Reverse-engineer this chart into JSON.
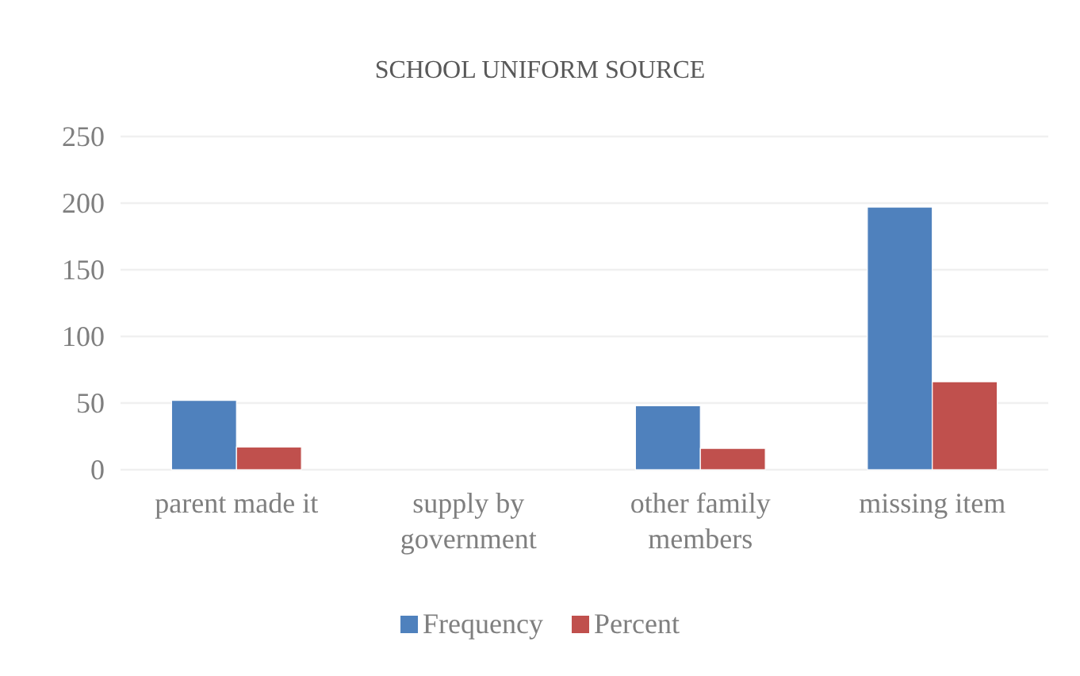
{
  "chart_data": {
    "type": "bar",
    "title": "SCHOOL UNIFORM SOURCE",
    "categories": [
      "parent made it",
      "supply by government",
      "other family members",
      "missing item"
    ],
    "series": [
      {
        "name": "Frequency",
        "color": "#4f81bd",
        "values": [
          52,
          0,
          48,
          197
        ]
      },
      {
        "name": "Percent",
        "color": "#c0504d",
        "values": [
          17,
          0,
          16,
          66
        ]
      }
    ],
    "ylim": [
      0,
      250
    ],
    "yticks": [
      0,
      50,
      100,
      150,
      200,
      250
    ],
    "grid": "y",
    "legend": "bottom"
  }
}
